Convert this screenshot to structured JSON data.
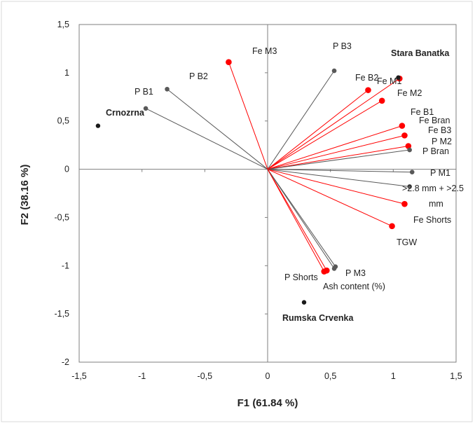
{
  "chart_data": {
    "type": "scatter",
    "subtype": "pca-biplot",
    "title": "",
    "xlabel": "F1 (61.84 %)",
    "ylabel": "F2 (38.16 %)",
    "xlim": [
      -1.5,
      1.5
    ],
    "ylim": [
      -2,
      1.5
    ],
    "xticks": [
      -1.5,
      -1,
      -0.5,
      0,
      0.5,
      1,
      1.5
    ],
    "xtick_labels": [
      "-1,5",
      "-1",
      "-0,5",
      "0",
      "0,5",
      "1",
      "1,5"
    ],
    "yticks": [
      -2,
      -1.5,
      -1,
      -0.5,
      0,
      0.5,
      1,
      1.5
    ],
    "ytick_labels": [
      "-2",
      "-1,5",
      "-1",
      "-0,5",
      "0",
      "0,5",
      "1",
      "1,5"
    ],
    "grid": false,
    "legend": "none",
    "colors": {
      "P": "#595959",
      "Fe": "#ff0000",
      "observation": "#1a1a1a"
    },
    "variables": [
      {
        "label": "P B1",
        "group": "P",
        "x": -0.97,
        "y": 0.63
      },
      {
        "label": "P B2",
        "group": "P",
        "x": -0.8,
        "y": 0.83
      },
      {
        "label": "Fe M3",
        "group": "Fe",
        "x": -0.31,
        "y": 1.11
      },
      {
        "label": "P B3",
        "group": "P",
        "x": 0.53,
        "y": 1.02
      },
      {
        "label": "Fe B2",
        "group": "Fe",
        "x": 0.8,
        "y": 0.82
      },
      {
        "label": "Fe M1",
        "group": "Fe",
        "x": 1.05,
        "y": 0.94
      },
      {
        "label": "Fe M2",
        "group": "Fe",
        "x": 0.91,
        "y": 0.71
      },
      {
        "label": "Fe B1",
        "group": "Fe",
        "x": 1.07,
        "y": 0.45
      },
      {
        "label": "Fe Bran",
        "group": "Fe",
        "x": 1.09,
        "y": 0.35
      },
      {
        "label": "Fe B3",
        "group": "Fe",
        "x": 1.12,
        "y": 0.24
      },
      {
        "label": "P M2",
        "group": "P",
        "x": 1.13,
        "y": 0.2
      },
      {
        "label": "P Bran",
        "group": "P",
        "x": 1.15,
        "y": -0.03
      },
      {
        "label": "P M1",
        "group": "P",
        "x": 1.13,
        "y": -0.18
      },
      {
        "label": ">2.8 mm + >2.5 mm",
        "group": "Fe",
        "x": 1.09,
        "y": -0.36
      },
      {
        "label": "Fe Shorts",
        "group": "Fe",
        "x": 0.99,
        "y": -0.59
      },
      {
        "label": "TGW",
        "group": "Fe",
        "x": 0.47,
        "y": -1.05
      },
      {
        "label": "P Shorts",
        "group": "P",
        "x": 0.53,
        "y": -1.03
      },
      {
        "label": "P M3",
        "group": "P",
        "x": 0.54,
        "y": -1.01
      },
      {
        "label": "Ash content (%)",
        "group": "Fe",
        "x": 0.45,
        "y": -1.06
      }
    ],
    "observations": [
      {
        "label": "Stara Banatka",
        "x": 1.04,
        "y": 0.95
      },
      {
        "label": "Crnozrna",
        "x": -1.35,
        "y": 0.45
      },
      {
        "label": "Rumska Crvenka",
        "x": 0.29,
        "y": -1.38
      }
    ],
    "label_texts": {
      "P B1": "P B1",
      "P B2": "P B2",
      "Fe M3": "Fe M3",
      "P B3": "P B3",
      "Fe B2": "Fe B2",
      "Fe M1": "Fe M1",
      "Fe M2": "Fe M2",
      "Fe B1": "Fe B1",
      "Fe Bran": "Fe Bran",
      "Fe B3": "Fe B3",
      "P M2": "P M2",
      "P Bran": "P Bran",
      "P M1": "P M1",
      "mm_line1": ">2.8 mm + >2.5",
      "mm_line2": "mm",
      "Fe Shorts": "Fe Shorts",
      "TGW": "TGW",
      "P Shorts": "P Shorts",
      "P M3": "P M3",
      "Ash content (%)": "Ash content (%)",
      "Stara Banatka": "Stara Banatka",
      "Crnozrna": "Crnozrna",
      "Rumska Crvenka": "Rumska Crvenka"
    }
  }
}
